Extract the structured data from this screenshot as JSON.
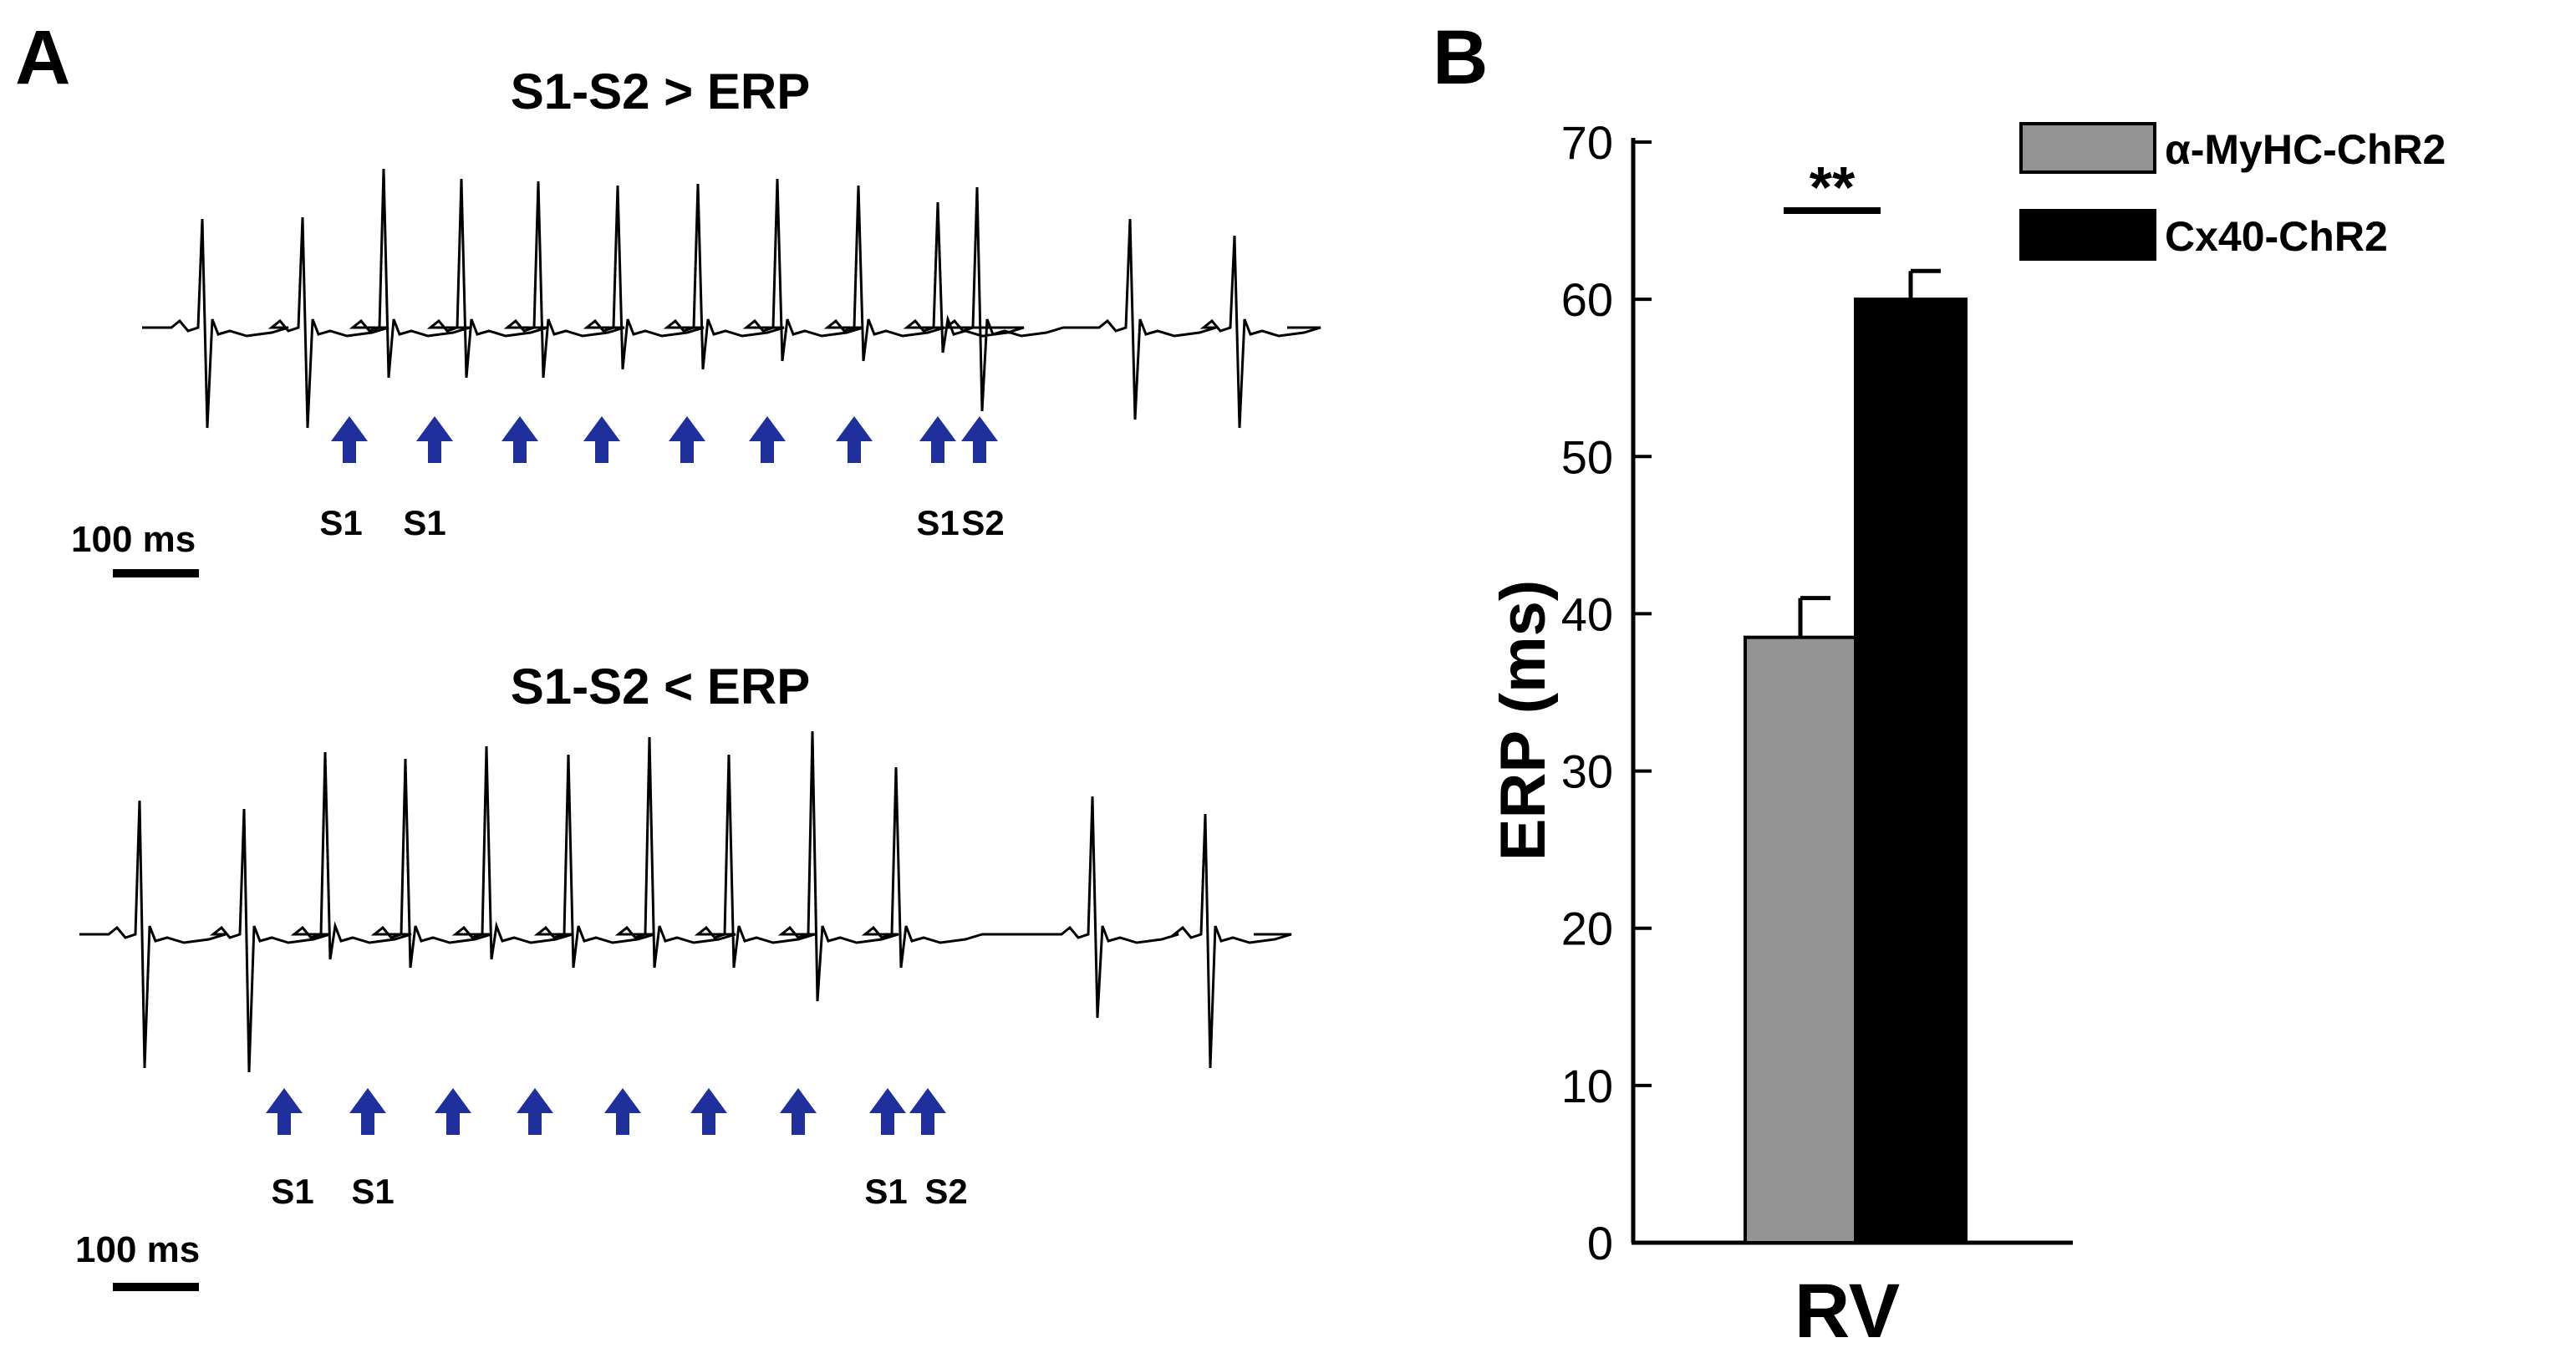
{
  "panel_a": {
    "letter": "A",
    "top": {
      "title": "S1-S2 > ERP",
      "scale_label": "100 ms",
      "stim_labels": [
        "S1",
        "S1",
        "S1",
        "S2"
      ]
    },
    "bottom": {
      "title": "S1-S2 < ERP",
      "scale_label": "100 ms",
      "stim_labels": [
        "S1",
        "S1",
        "S1",
        "S2"
      ]
    },
    "arrow_color": "#1f2f9c",
    "trace_color": "#000000"
  },
  "chart_data": {
    "type": "bar",
    "panel_letter": "B",
    "categories": [
      "RV"
    ],
    "series": [
      {
        "name": "α-MyHC-ChR2",
        "values": [
          38.5
        ],
        "error": [
          2.5
        ],
        "color": "#939393"
      },
      {
        "name": "Cx40-ChR2",
        "values": [
          60
        ],
        "error": [
          1.8
        ],
        "color": "#000000"
      }
    ],
    "title": "",
    "xlabel": "",
    "ylabel": "ERP (ms)",
    "ylim": [
      0,
      70
    ],
    "yticks": [
      0,
      10,
      20,
      30,
      40,
      50,
      60,
      70
    ],
    "significance": "**",
    "grid": false,
    "legend": "top-right"
  }
}
